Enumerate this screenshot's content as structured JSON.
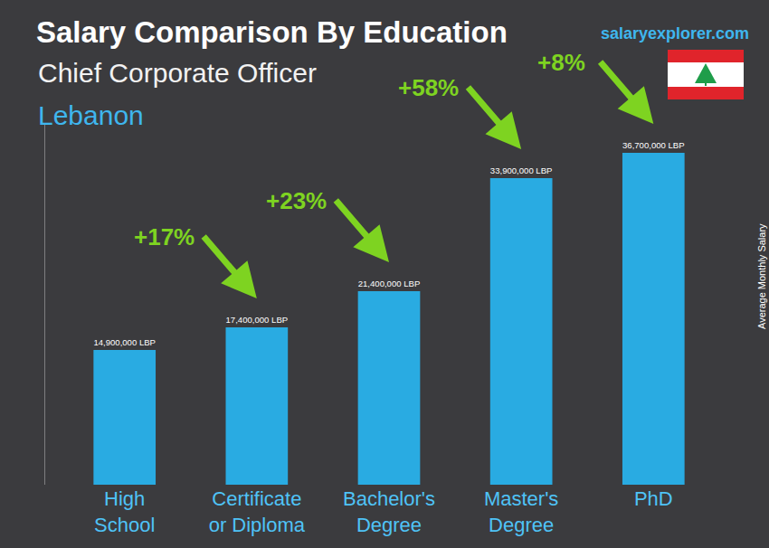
{
  "chart_data": {
    "type": "bar",
    "title": "Salary Comparison By Education",
    "subtitle": "Chief Corporate Officer",
    "country": "Lebanon",
    "source": "salaryexplorer.com",
    "y_label": "Average Monthly Salary",
    "categories": [
      "High School",
      "Certificate or Diploma",
      "Bachelor's Degree",
      "Master's Degree",
      "PhD"
    ],
    "values": [
      14900000,
      17400000,
      21400000,
      33900000,
      36700000
    ],
    "value_labels": [
      "14,900,000 LBP",
      "17,400,000 LBP",
      "21,400,000 LBP",
      "33,900,000 LBP",
      "36,700,000 LBP"
    ],
    "data_labels": true,
    "color": "#29abe2",
    "ylim": [
      0,
      40000000
    ],
    "tick_labels": "x",
    "grid": false,
    "annotations": [
      {
        "text": "+17%",
        "value": 17,
        "from": "High School",
        "to": "Certificate or Diploma"
      },
      {
        "text": "+23%",
        "value": 23,
        "from": "Certificate or Diploma",
        "to": "Bachelor's Degree"
      },
      {
        "text": "+58%",
        "value": 58,
        "from": "Bachelor's Degree",
        "to": "Master's Degree"
      },
      {
        "text": "+8%",
        "value": 8,
        "from": "Master's Degree",
        "to": "PhD"
      }
    ]
  }
}
